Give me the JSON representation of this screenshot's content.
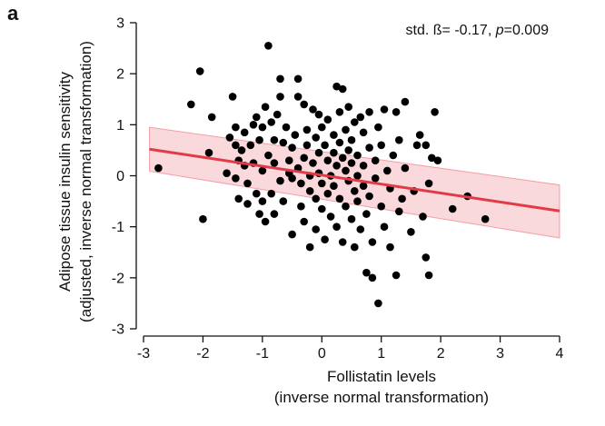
{
  "panel_label": "a",
  "chart_data": {
    "type": "scatter",
    "annotation": {
      "prefix": "std. ß= -0.17, ",
      "p_label": "p",
      "p_value": "=0.009"
    },
    "xlabel": [
      "Follistatin levels",
      "(inverse normal transformation)"
    ],
    "ylabel": [
      "Adipose tissue insulin sensitivity",
      "(adjusted, inverse normal transformation)"
    ],
    "xlim": [
      -3,
      4
    ],
    "ylim": [
      -3,
      3
    ],
    "xticks": [
      -3,
      -2,
      -1,
      0,
      1,
      2,
      3,
      4
    ],
    "yticks": [
      -3,
      -2,
      -1,
      0,
      1,
      2,
      3
    ],
    "grid": false,
    "colors": {
      "points": "#000000",
      "fit_line": "#e23b48",
      "ci_band": "#e8434f"
    },
    "fit": {
      "x": [
        -2.9,
        4.0
      ],
      "y": [
        0.52,
        -0.69
      ],
      "ci_upper": [
        0.95,
        -0.18
      ],
      "ci_lower": [
        0.09,
        -1.22
      ]
    },
    "points": [
      [
        -2.75,
        0.15
      ],
      [
        -2.2,
        1.4
      ],
      [
        -2.05,
        2.05
      ],
      [
        -2.0,
        -0.85
      ],
      [
        -1.9,
        0.45
      ],
      [
        -1.85,
        1.15
      ],
      [
        -1.6,
        0.05
      ],
      [
        -1.55,
        0.75
      ],
      [
        -1.5,
        1.55
      ],
      [
        -1.45,
        0.95
      ],
      [
        -1.45,
        0.6
      ],
      [
        -1.45,
        -0.05
      ],
      [
        -1.4,
        -0.45
      ],
      [
        -1.4,
        0.3
      ],
      [
        -1.35,
        0.5
      ],
      [
        -1.3,
        0.85
      ],
      [
        -1.3,
        0.2
      ],
      [
        -1.25,
        -0.15
      ],
      [
        -1.25,
        -0.55
      ],
      [
        -1.2,
        0.6
      ],
      [
        -1.15,
        1.0
      ],
      [
        -1.15,
        0.25
      ],
      [
        -1.1,
        -0.35
      ],
      [
        -1.1,
        1.15
      ],
      [
        -1.05,
        0.7
      ],
      [
        -1.05,
        -0.75
      ],
      [
        -1.0,
        0.95
      ],
      [
        -1.0,
        0.1
      ],
      [
        -1.0,
        -0.5
      ],
      [
        -0.95,
        1.35
      ],
      [
        -0.95,
        -0.9
      ],
      [
        -0.9,
        2.55
      ],
      [
        -0.9,
        0.4
      ],
      [
        -0.85,
        -0.35
      ],
      [
        -0.85,
        1.05
      ],
      [
        -0.8,
        0.7
      ],
      [
        -0.8,
        0.25
      ],
      [
        -0.8,
        -0.75
      ],
      [
        -0.75,
        1.2
      ],
      [
        -0.7,
        1.9
      ],
      [
        -0.7,
        1.55
      ],
      [
        -0.7,
        -0.1
      ],
      [
        -0.65,
        0.65
      ],
      [
        -0.65,
        -0.5
      ],
      [
        -0.6,
        0.95
      ],
      [
        -0.55,
        0.3
      ],
      [
        -0.55,
        0.05
      ],
      [
        -0.5,
        0.55
      ],
      [
        -0.5,
        -0.05
      ],
      [
        -0.5,
        -1.15
      ],
      [
        -0.45,
        0.8
      ],
      [
        -0.4,
        1.55
      ],
      [
        -0.4,
        1.9
      ],
      [
        -0.4,
        0.15
      ],
      [
        -0.35,
        -0.15
      ],
      [
        -0.35,
        -0.6
      ],
      [
        -0.3,
        0.35
      ],
      [
        -0.3,
        1.4
      ],
      [
        -0.3,
        -0.9
      ],
      [
        -0.25,
        0.9
      ],
      [
        -0.25,
        0.6
      ],
      [
        -0.2,
        0.0
      ],
      [
        -0.2,
        -0.3
      ],
      [
        -0.2,
        -1.4
      ],
      [
        -0.15,
        1.3
      ],
      [
        -0.15,
        0.25
      ],
      [
        -0.1,
        0.75
      ],
      [
        -0.1,
        -0.45
      ],
      [
        -0.1,
        -1.05
      ],
      [
        -0.05,
        1.2
      ],
      [
        -0.05,
        0.45
      ],
      [
        -0.05,
        0.05
      ],
      [
        0.0,
        -0.15
      ],
      [
        0.0,
        -0.65
      ],
      [
        0.0,
        0.95
      ],
      [
        0.05,
        0.6
      ],
      [
        0.05,
        -1.25
      ],
      [
        0.1,
        0.3
      ],
      [
        0.1,
        -0.35
      ],
      [
        0.1,
        1.1
      ],
      [
        0.15,
        0.0
      ],
      [
        0.15,
        -0.8
      ],
      [
        0.2,
        0.45
      ],
      [
        0.2,
        0.8
      ],
      [
        0.2,
        -0.2
      ],
      [
        0.25,
        1.75
      ],
      [
        0.25,
        -1.0
      ],
      [
        0.25,
        0.2
      ],
      [
        0.3,
        0.65
      ],
      [
        0.3,
        -0.45
      ],
      [
        0.3,
        1.25
      ],
      [
        0.35,
        0.35
      ],
      [
        0.35,
        1.7
      ],
      [
        0.35,
        -1.3
      ],
      [
        0.4,
        0.1
      ],
      [
        0.4,
        0.9
      ],
      [
        0.4,
        -0.6
      ],
      [
        0.45,
        0.5
      ],
      [
        0.45,
        -0.1
      ],
      [
        0.45,
        1.35
      ],
      [
        0.5,
        0.25
      ],
      [
        0.5,
        -0.85
      ],
      [
        0.5,
        0.7
      ],
      [
        0.55,
        -0.3
      ],
      [
        0.55,
        1.05
      ],
      [
        0.55,
        -1.4
      ],
      [
        0.6,
        0.4
      ],
      [
        0.6,
        -0.5
      ],
      [
        0.6,
        0.0
      ],
      [
        0.65,
        1.15
      ],
      [
        0.65,
        -1.05
      ],
      [
        0.7,
        0.2
      ],
      [
        0.7,
        -0.2
      ],
      [
        0.7,
        0.85
      ],
      [
        0.75,
        -0.75
      ],
      [
        0.75,
        -1.9
      ],
      [
        0.8,
        0.55
      ],
      [
        0.8,
        1.25
      ],
      [
        0.8,
        -0.4
      ],
      [
        0.85,
        -1.3
      ],
      [
        0.85,
        -2.0
      ],
      [
        0.9,
        0.3
      ],
      [
        0.9,
        -0.05
      ],
      [
        0.95,
        -2.5
      ],
      [
        0.95,
        0.95
      ],
      [
        1.0,
        -0.6
      ],
      [
        1.0,
        0.6
      ],
      [
        1.05,
        1.3
      ],
      [
        1.05,
        -1.0
      ],
      [
        1.1,
        0.1
      ],
      [
        1.15,
        -0.25
      ],
      [
        1.15,
        -1.4
      ],
      [
        1.2,
        0.4
      ],
      [
        1.25,
        1.25
      ],
      [
        1.25,
        -1.95
      ],
      [
        1.3,
        -0.7
      ],
      [
        1.3,
        0.7
      ],
      [
        1.35,
        -0.45
      ],
      [
        1.4,
        1.45
      ],
      [
        1.4,
        0.15
      ],
      [
        1.5,
        -1.1
      ],
      [
        1.55,
        -0.3
      ],
      [
        1.6,
        0.6
      ],
      [
        1.65,
        0.8
      ],
      [
        1.7,
        -0.8
      ],
      [
        1.75,
        0.6
      ],
      [
        1.75,
        -1.6
      ],
      [
        1.8,
        -0.15
      ],
      [
        1.8,
        -1.95
      ],
      [
        1.85,
        0.35
      ],
      [
        1.9,
        1.25
      ],
      [
        1.95,
        0.3
      ],
      [
        2.2,
        -0.65
      ],
      [
        2.45,
        -0.4
      ],
      [
        2.75,
        -0.85
      ]
    ]
  }
}
